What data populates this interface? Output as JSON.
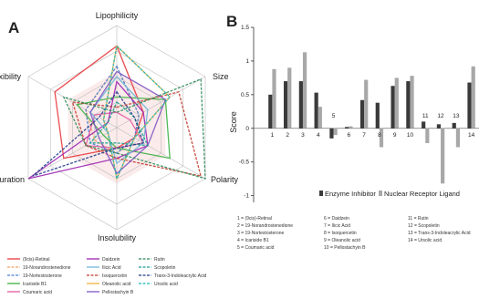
{
  "panels": {
    "a": "A",
    "b": "B"
  },
  "chart_data": [
    {
      "type": "radar",
      "axes": [
        "Lipophilicity",
        "Size",
        "Polarity",
        "Insolubility",
        "Unsaturation",
        "Flexibility"
      ],
      "range": [
        0,
        1
      ],
      "grid": true,
      "series": [
        {
          "name": "(9cis)-Retinal",
          "color": "#e8383d",
          "dash": false,
          "values": [
            0.8,
            0.3,
            0.2,
            0.2,
            0.6,
            0.7
          ]
        },
        {
          "name": "19-Norandrostenedione",
          "color": "#f4a460",
          "dash": true,
          "values": [
            0.6,
            0.25,
            0.2,
            0.25,
            0.25,
            0.35
          ]
        },
        {
          "name": "19-Nortestosterone",
          "color": "#4a7fd6",
          "dash": true,
          "values": [
            0.6,
            0.25,
            0.2,
            0.25,
            0.3,
            0.35
          ]
        },
        {
          "name": "Icariside B1",
          "color": "#3cb043",
          "dash": false,
          "values": [
            0.3,
            0.55,
            0.6,
            0.2,
            0.15,
            0.45
          ]
        },
        {
          "name": "Coumaric acid",
          "color": "#e05aa0",
          "dash": false,
          "values": [
            0.15,
            0.15,
            0.3,
            0.2,
            0.35,
            0.25
          ]
        },
        {
          "name": "Daidzein",
          "color": "#9c27b0",
          "dash": false,
          "values": [
            0.45,
            0.3,
            0.35,
            0.3,
            1.0,
            0.1
          ]
        },
        {
          "name": "Ilicic Acid",
          "color": "#6fb6d6",
          "dash": false,
          "values": [
            0.5,
            0.35,
            0.3,
            0.35,
            0.1,
            0.3
          ]
        },
        {
          "name": "Isoquercetin",
          "color": "#c0392b",
          "dash": true,
          "values": [
            0.2,
            0.7,
            0.95,
            0.3,
            0.35,
            0.5
          ]
        },
        {
          "name": "Oleanolic acid",
          "color": "#f0b43c",
          "dash": false,
          "values": [
            0.8,
            0.6,
            0.2,
            0.5,
            0.1,
            0.15
          ]
        },
        {
          "name": "Pellostachyin B",
          "color": "#7e57c2",
          "dash": false,
          "values": [
            0.55,
            0.55,
            0.35,
            0.45,
            0.2,
            0.3
          ]
        },
        {
          "name": "Rutin",
          "color": "#2e8b57",
          "dash": true,
          "values": [
            0.15,
            0.95,
            1.0,
            0.25,
            0.35,
            0.6
          ]
        },
        {
          "name": "Scopoletin",
          "color": "#1a9e8f",
          "dash": true,
          "values": [
            0.25,
            0.2,
            0.35,
            0.15,
            0.3,
            0.1
          ]
        },
        {
          "name": "Trans-3-Indoleacrylic Acid",
          "color": "#1f3b8c",
          "dash": true,
          "values": [
            0.35,
            0.2,
            0.3,
            0.2,
            0.95,
            0.2
          ]
        },
        {
          "name": "Ursolic acid",
          "color": "#1fb8b8",
          "dash": true,
          "values": [
            0.8,
            0.6,
            0.2,
            0.5,
            0.1,
            0.15
          ]
        }
      ]
    },
    {
      "type": "bar",
      "ylabel": "Score",
      "ylim": [
        -1.1,
        1.5
      ],
      "yticks": [
        "-1",
        "-0.5",
        "0",
        "0.5",
        "1",
        "1.5"
      ],
      "ytick_values": [
        -1,
        -0.5,
        0,
        0.5,
        1,
        1.5
      ],
      "categories": [
        "1",
        "2",
        "3",
        "4",
        "5",
        "6",
        "7",
        "8",
        "9",
        "10",
        "11",
        "12",
        "13",
        "14"
      ],
      "category_label_above": [
        "5",
        "11",
        "12",
        "13"
      ],
      "series": [
        {
          "name": "Enzyme Inhibitor",
          "color": "#3a3a3a",
          "values": [
            0.5,
            0.7,
            0.7,
            0.53,
            -0.15,
            0.02,
            0.42,
            0.38,
            0.63,
            0.7,
            0.1,
            0.06,
            0.08,
            0.68
          ]
        },
        {
          "name": "Nuclear Receptor Ligand",
          "color": "#a8a8a8",
          "values": [
            0.88,
            0.9,
            1.13,
            0.32,
            -0.1,
            0.03,
            0.72,
            -0.28,
            0.75,
            0.78,
            -0.22,
            -0.82,
            -0.28,
            0.92
          ]
        }
      ],
      "grid": false,
      "legend": "bottom-center"
    }
  ],
  "key_list": [
    "1 = (9cis)-Retinal",
    "2 = 19-Norandrostenedione",
    "3 = 19-Nortestosterone",
    "4 = Icariside B1",
    "5 = Coumaric acid",
    "6 = Daidzein",
    "7 = Ilicic Acid",
    "8 = Isoquercetin",
    "9 = Oleanolic acid",
    "10 = Pellostachyin B",
    "11 = Rutin",
    "12 = Scopoletin",
    "13 = Trans-3-Indoleacrylic Acid",
    "14 = Ursolic acid"
  ]
}
